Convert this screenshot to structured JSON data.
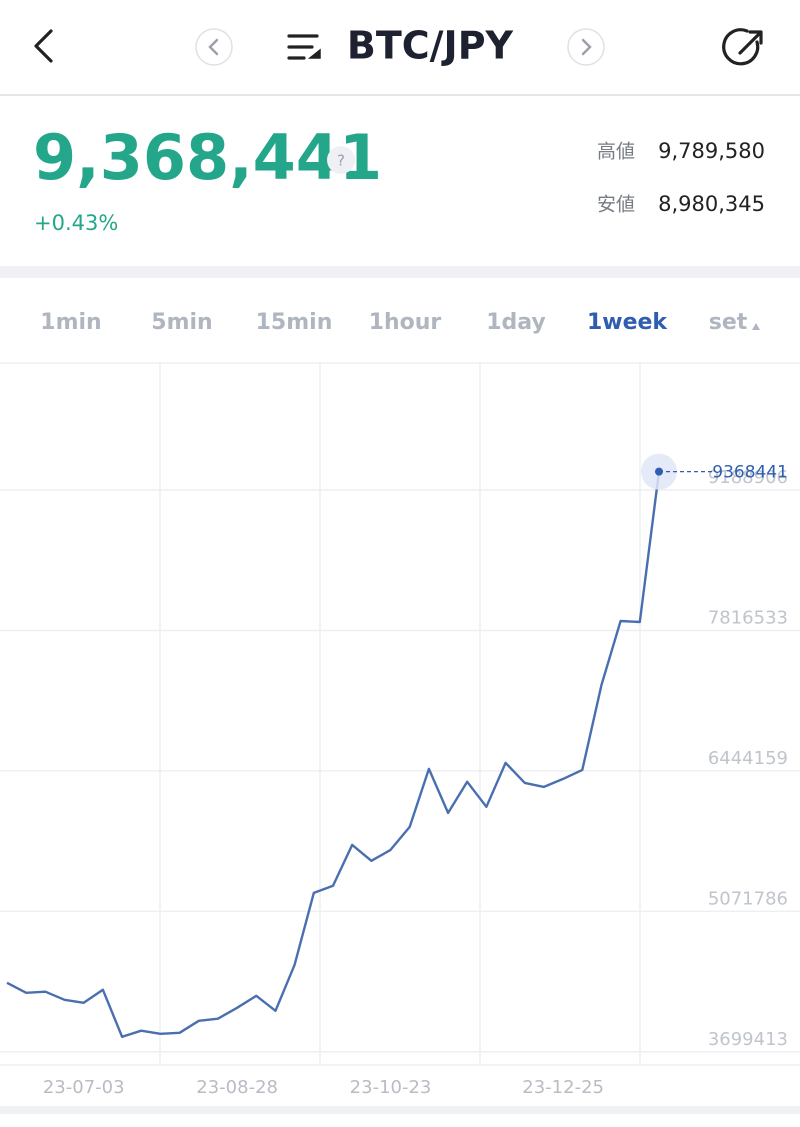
{
  "header": {
    "pair": "BTC/JPY"
  },
  "ticker": {
    "price": "9,368,441",
    "help": "?",
    "change": "+0.43%",
    "high_label": "高値",
    "high": "9,789,580",
    "low_label": "安値",
    "low": "8,980,345"
  },
  "tabs": {
    "items": [
      "1min",
      "5min",
      "15min",
      "1hour",
      "1day",
      "1week",
      "set"
    ],
    "active": 5,
    "color": "#b0b6c0",
    "active_color": "#2f5db0"
  },
  "chart_data": {
    "type": "line",
    "categories": [
      null,
      null,
      null,
      null,
      "23-07-03",
      null,
      null,
      null,
      null,
      null,
      null,
      null,
      "23-08-28",
      null,
      null,
      null,
      null,
      null,
      null,
      null,
      "23-10-23",
      null,
      null,
      null,
      null,
      null,
      null,
      null,
      null,
      "23-12-25",
      null,
      null,
      null,
      null,
      null
    ],
    "series": [
      {
        "color": "#4a6fb0",
        "values": [
          4373000,
          4276000,
          4286000,
          4207000,
          4178000,
          4305000,
          3846000,
          3905000,
          3875000,
          3885000,
          4002000,
          4022000,
          4129000,
          4246000,
          4100000,
          4549000,
          5252000,
          5321000,
          5721000,
          5565000,
          5672000,
          5897000,
          6464000,
          6034000,
          6337000,
          6093000,
          6522000,
          6327000,
          6288000,
          6366000,
          6454000,
          7284000,
          7909000,
          7899000,
          9368441
        ]
      }
    ],
    "ylim": [
      3570000,
      10430000
    ],
    "yticks": [
      3699413,
      5071786,
      6444159,
      7816533,
      9188906
    ],
    "grid": true
  }
}
